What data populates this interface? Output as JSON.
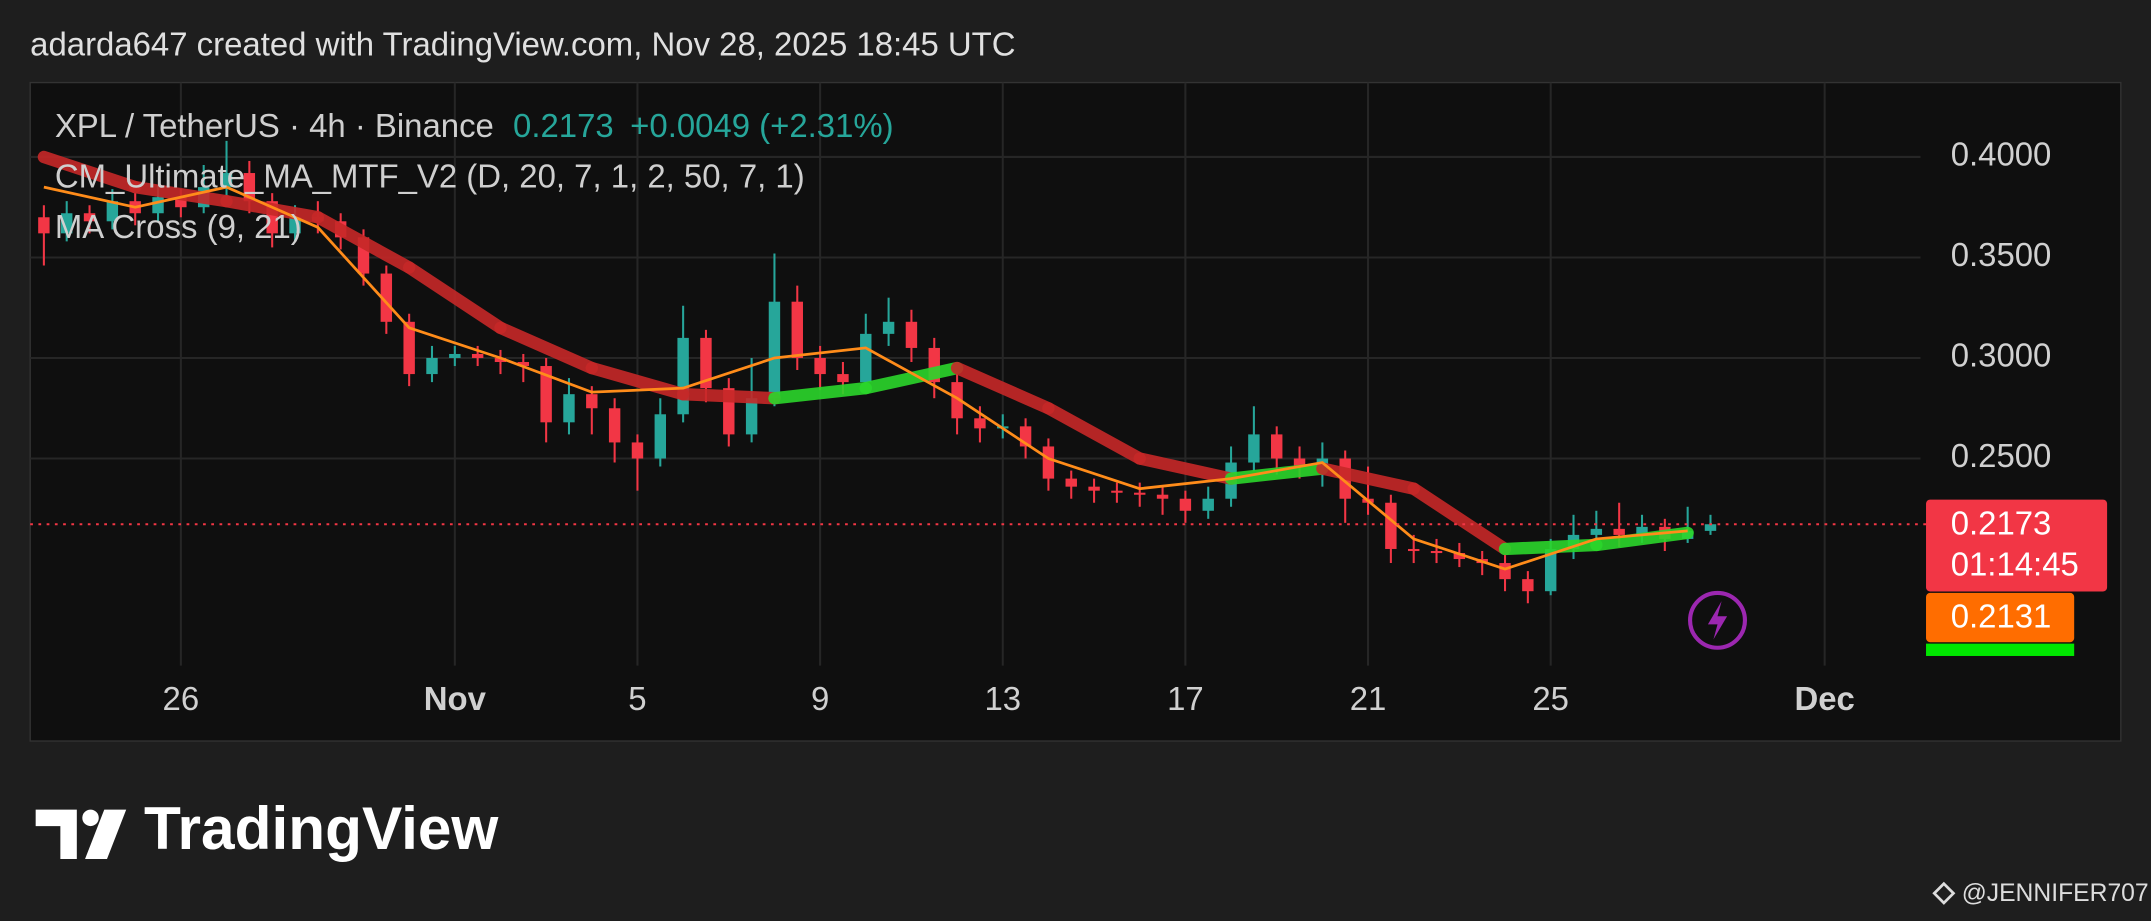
{
  "header": "adarda647 created with TradingView.com, Nov 28, 2025 18:45 UTC",
  "chart_data": {
    "type": "candlestick",
    "symbol": "XPL / TetherUS · 4h · Binance",
    "last_price": 0.2173,
    "change": "+0.0049 (+2.31%)",
    "indicators": [
      "CM_Ultimate_MA_MTF_V2 (D, 20, 7, 1, 2, 50, 7, 1)",
      "MA Cross (9, 21)"
    ],
    "countdown": "01:14:45",
    "ma_last": 0.2131,
    "up_color": "#26a69a",
    "down_color": "#f23645",
    "xlim": [
      22.7,
      64.1
    ],
    "xticks": [
      {
        "value": 26,
        "label": "26"
      },
      {
        "value": 32,
        "label": "Nov"
      },
      {
        "value": 36,
        "label": "5"
      },
      {
        "value": 40,
        "label": "9"
      },
      {
        "value": 44,
        "label": "13"
      },
      {
        "value": 48,
        "label": "17"
      },
      {
        "value": 52,
        "label": "21"
      },
      {
        "value": 56,
        "label": "25"
      },
      {
        "value": 62,
        "label": "Dec"
      }
    ],
    "ylim": [
      0.147,
      0.437
    ],
    "yticks": [
      {
        "value": 0.25,
        "label": "0.2500"
      },
      {
        "value": 0.3,
        "label": "0.3000"
      },
      {
        "value": 0.35,
        "label": "0.3500"
      },
      {
        "value": 0.4,
        "label": "0.4000"
      }
    ],
    "grid": true,
    "candles": {
      "x": [
        23,
        23.5,
        24,
        24.5,
        25,
        25.5,
        26,
        26.5,
        27,
        27.5,
        28,
        28.5,
        29,
        29.5,
        30,
        30.5,
        31,
        31.5,
        32,
        32.5,
        33,
        33.5,
        34,
        34.5,
        35,
        35.5,
        36,
        36.5,
        37,
        37.5,
        38,
        38.5,
        39,
        39.5,
        40,
        40.5,
        41,
        41.5,
        42,
        42.5,
        43,
        43.5,
        44,
        44.5,
        45,
        45.5,
        46,
        46.5,
        47,
        47.5,
        48,
        48.5,
        49,
        49.5,
        50,
        50.5,
        51,
        51.5,
        52,
        52.5,
        53,
        53.5,
        54,
        54.5,
        55,
        55.5,
        56,
        56.5,
        57,
        57.5,
        58,
        58.5,
        59,
        59.5
      ],
      "open": [
        0.37,
        0.362,
        0.372,
        0.368,
        0.378,
        0.372,
        0.38,
        0.375,
        0.385,
        0.392,
        0.378,
        0.362,
        0.37,
        0.368,
        0.36,
        0.342,
        0.318,
        0.292,
        0.3,
        0.302,
        0.3,
        0.298,
        0.296,
        0.268,
        0.282,
        0.275,
        0.258,
        0.25,
        0.272,
        0.31,
        0.285,
        0.262,
        0.28,
        0.328,
        0.3,
        0.292,
        0.288,
        0.312,
        0.318,
        0.305,
        0.288,
        0.27,
        0.265,
        0.266,
        0.256,
        0.24,
        0.236,
        0.234,
        0.233,
        0.232,
        0.23,
        0.224,
        0.23,
        0.248,
        0.262,
        0.25,
        0.246,
        0.25,
        0.23,
        0.228,
        0.205,
        0.204,
        0.203,
        0.2,
        0.198,
        0.19,
        0.184,
        0.205,
        0.212,
        0.215,
        0.212,
        0.216,
        0.21,
        0.214
      ],
      "high": [
        0.376,
        0.378,
        0.376,
        0.384,
        0.382,
        0.386,
        0.384,
        0.396,
        0.408,
        0.398,
        0.382,
        0.376,
        0.378,
        0.372,
        0.364,
        0.346,
        0.322,
        0.306,
        0.306,
        0.306,
        0.304,
        0.302,
        0.3,
        0.29,
        0.286,
        0.28,
        0.262,
        0.28,
        0.326,
        0.314,
        0.29,
        0.3,
        0.352,
        0.336,
        0.306,
        0.298,
        0.322,
        0.33,
        0.324,
        0.31,
        0.292,
        0.276,
        0.272,
        0.27,
        0.26,
        0.244,
        0.24,
        0.238,
        0.238,
        0.236,
        0.234,
        0.236,
        0.256,
        0.276,
        0.266,
        0.256,
        0.258,
        0.254,
        0.246,
        0.232,
        0.212,
        0.21,
        0.208,
        0.204,
        0.202,
        0.194,
        0.21,
        0.222,
        0.224,
        0.228,
        0.222,
        0.22,
        0.226,
        0.222
      ],
      "low": [
        0.346,
        0.358,
        0.362,
        0.364,
        0.366,
        0.368,
        0.37,
        0.372,
        0.38,
        0.372,
        0.355,
        0.358,
        0.362,
        0.354,
        0.336,
        0.312,
        0.286,
        0.288,
        0.296,
        0.296,
        0.292,
        0.288,
        0.258,
        0.262,
        0.262,
        0.248,
        0.234,
        0.246,
        0.268,
        0.278,
        0.256,
        0.258,
        0.276,
        0.294,
        0.284,
        0.282,
        0.286,
        0.306,
        0.298,
        0.28,
        0.262,
        0.258,
        0.26,
        0.25,
        0.234,
        0.23,
        0.228,
        0.228,
        0.226,
        0.222,
        0.218,
        0.22,
        0.226,
        0.244,
        0.242,
        0.24,
        0.236,
        0.218,
        0.222,
        0.198,
        0.198,
        0.198,
        0.196,
        0.192,
        0.184,
        0.178,
        0.182,
        0.2,
        0.208,
        0.206,
        0.208,
        0.204,
        0.208,
        0.212
      ],
      "close": [
        0.362,
        0.372,
        0.368,
        0.378,
        0.372,
        0.38,
        0.375,
        0.385,
        0.392,
        0.378,
        0.362,
        0.37,
        0.368,
        0.36,
        0.342,
        0.318,
        0.292,
        0.3,
        0.302,
        0.3,
        0.298,
        0.296,
        0.268,
        0.282,
        0.275,
        0.258,
        0.25,
        0.272,
        0.31,
        0.285,
        0.262,
        0.28,
        0.328,
        0.3,
        0.292,
        0.288,
        0.312,
        0.318,
        0.305,
        0.288,
        0.27,
        0.265,
        0.266,
        0.256,
        0.24,
        0.236,
        0.234,
        0.233,
        0.232,
        0.23,
        0.224,
        0.23,
        0.248,
        0.262,
        0.25,
        0.246,
        0.25,
        0.23,
        0.228,
        0.205,
        0.204,
        0.203,
        0.2,
        0.198,
        0.19,
        0.184,
        0.205,
        0.212,
        0.215,
        0.212,
        0.216,
        0.21,
        0.214,
        0.2173
      ]
    },
    "series": [
      {
        "color": "#c62828",
        "rising_color": "#2bd62b",
        "width": 9,
        "x": [
          23,
          25,
          27,
          29,
          31,
          33,
          35,
          37,
          39,
          41,
          43,
          45,
          47,
          49,
          51,
          53,
          55,
          57,
          59
        ],
        "values": [
          0.4,
          0.385,
          0.378,
          0.37,
          0.345,
          0.315,
          0.295,
          0.282,
          0.28,
          0.285,
          0.295,
          0.275,
          0.25,
          0.24,
          0.245,
          0.235,
          0.205,
          0.207,
          0.213
        ]
      },
      {
        "color": "#ff8c1a",
        "width": 2,
        "x": [
          23,
          25,
          27,
          29,
          31,
          33,
          35,
          37,
          39,
          41,
          43,
          45,
          47,
          49,
          51,
          53,
          55,
          57,
          59
        ],
        "values": [
          0.385,
          0.375,
          0.385,
          0.365,
          0.315,
          0.3,
          0.283,
          0.285,
          0.3,
          0.305,
          0.28,
          0.25,
          0.235,
          0.24,
          0.248,
          0.21,
          0.195,
          0.21,
          0.214
        ]
      }
    ]
  },
  "footer": {
    "logo": "TradingView",
    "watermark": "@JENNIFER707"
  }
}
